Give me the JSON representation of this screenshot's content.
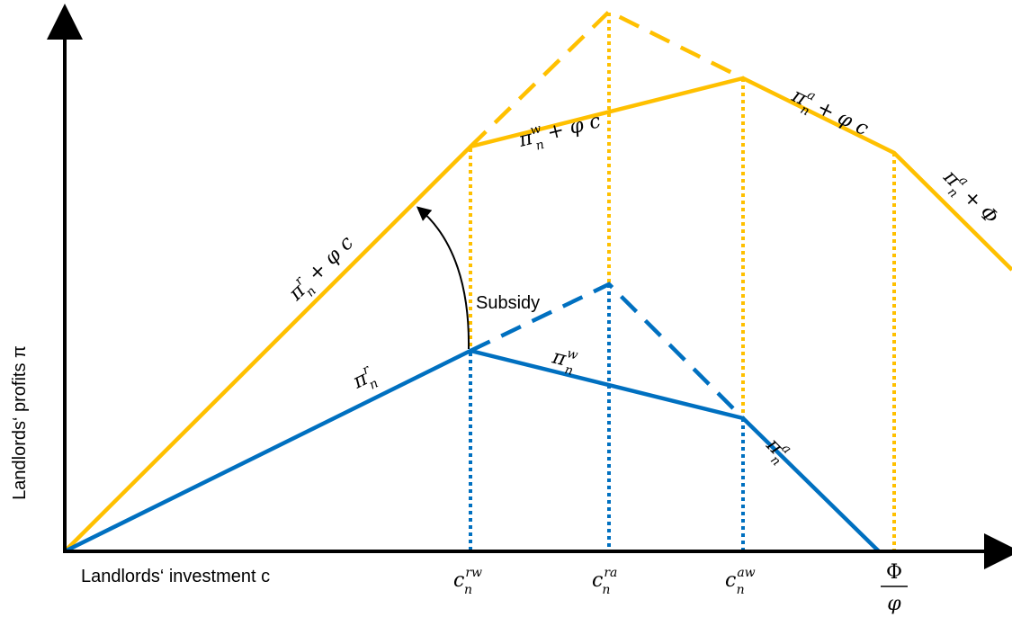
{
  "axes": {
    "y_label": "Landlords‘ profits π",
    "x_label": "Landlords‘ investment c"
  },
  "ticks": {
    "c_rw": {
      "base": "c",
      "sup": "rw",
      "sub": "n"
    },
    "c_ra": {
      "base": "c",
      "sup": "ra",
      "sub": "n"
    },
    "c_aw": {
      "base": "c",
      "sup": "aw",
      "sub": "n"
    },
    "phi_over_varphi": {
      "numerator": "Φ",
      "denominator": "φ"
    }
  },
  "curve_labels": {
    "upper_r": {
      "base": "π",
      "sup": "r",
      "sub": "n",
      "rest": " + φ c"
    },
    "upper_w": {
      "base": "π",
      "sup": "w",
      "sub": "n",
      "rest": " + φ c"
    },
    "upper_a": {
      "base": "π",
      "sup": "a",
      "sub": "n",
      "rest": " + φ c"
    },
    "upper_a_phi": {
      "base": "π",
      "sup": "a",
      "sub": "n",
      "rest": " + Φ"
    },
    "lower_r": {
      "base": "π",
      "sup": "r",
      "sub": "n"
    },
    "lower_w": {
      "base": "π",
      "sup": "w",
      "sub": "n"
    },
    "lower_a": {
      "base": "π",
      "sup": "a",
      "sub": "n"
    }
  },
  "annotation": {
    "subsidy": "Subsidy"
  },
  "colors": {
    "upper_curve": "#FFC000",
    "lower_curve": "#0070C0",
    "axis": "#000000"
  }
}
